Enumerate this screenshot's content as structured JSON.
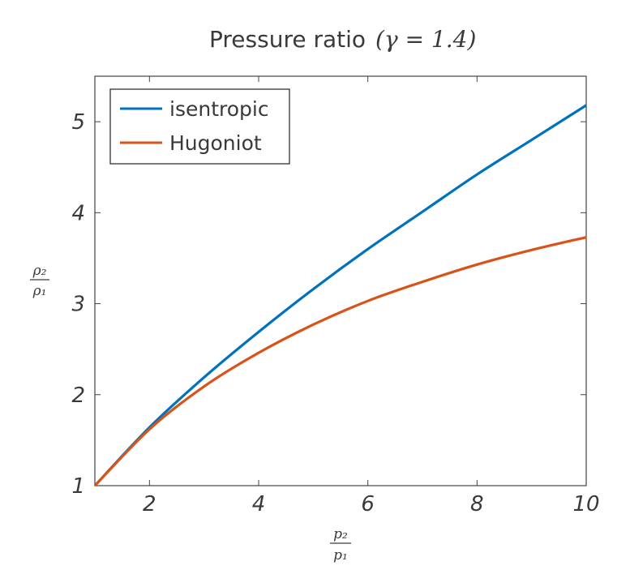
{
  "chart_data": {
    "type": "line",
    "title": "Pressure ratio",
    "title_math": "(γ = 1.4)",
    "xlabel": {
      "numerator": "p₂",
      "denominator": "p₁"
    },
    "ylabel": {
      "numerator": "ρ₂",
      "denominator": "ρ₁"
    },
    "xlim": [
      1,
      10
    ],
    "ylim": [
      1,
      5.5
    ],
    "xticks": [
      2,
      4,
      6,
      8,
      10
    ],
    "yticks": [
      1,
      2,
      3,
      4,
      5
    ],
    "grid": false,
    "legend_position": "top-left",
    "x": [
      1,
      2,
      3,
      4,
      5,
      6,
      7,
      8,
      9,
      10
    ],
    "series": [
      {
        "name": "isentropic",
        "color": "#0072bd",
        "values": [
          1.0,
          1.64,
          2.19,
          2.69,
          3.16,
          3.6,
          4.01,
          4.42,
          4.8,
          5.18
        ]
      },
      {
        "name": "Hugoniot",
        "color": "#d95319",
        "values": [
          1.0,
          1.62,
          2.09,
          2.46,
          2.77,
          3.03,
          3.24,
          3.43,
          3.59,
          3.73
        ]
      }
    ]
  }
}
